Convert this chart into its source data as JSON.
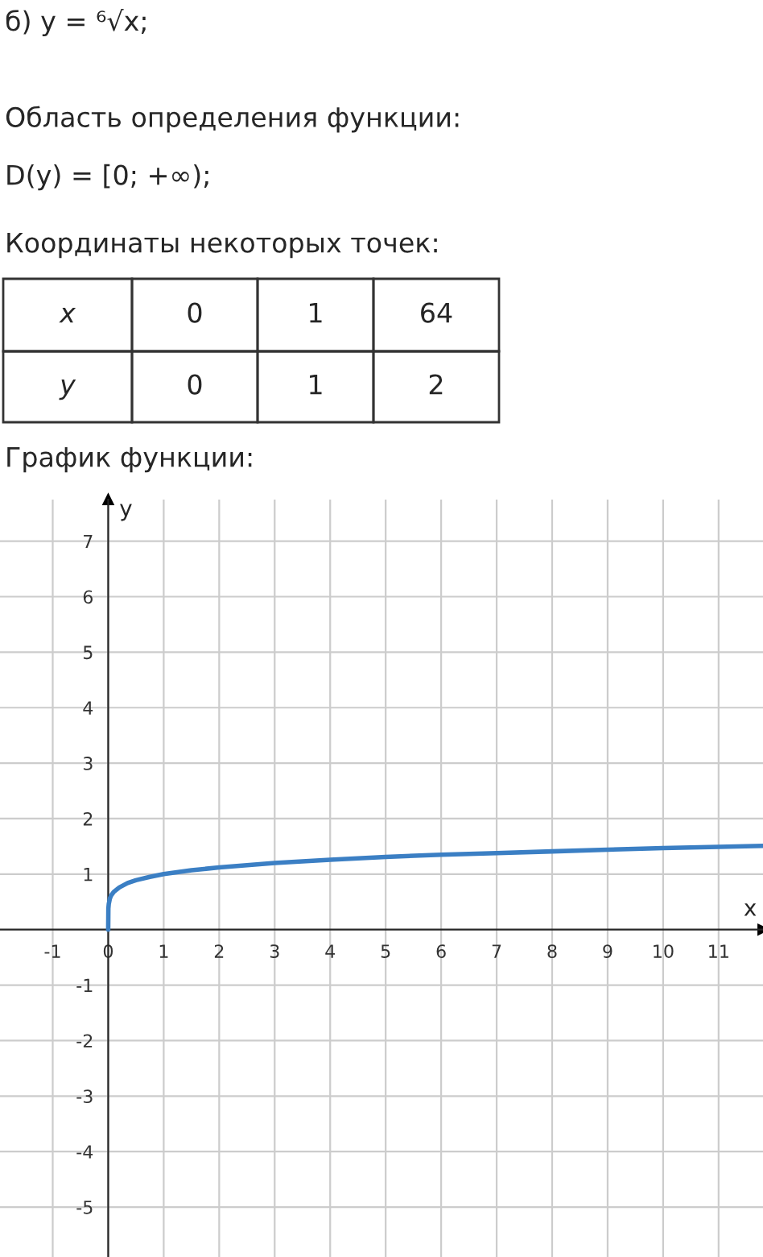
{
  "chart_data": {
    "type": "line",
    "title": "б) y = ⁶√x;",
    "xlabel": "x",
    "ylabel": "y",
    "annotations": [
      "Область определения функции:",
      "D(y) = [0; +∞);",
      "Координаты некоторых точек:",
      "x",
      "0",
      "1",
      "64",
      "y",
      "0",
      "1",
      "2",
      "График функции:"
    ],
    "series": [
      {
        "color": "#3b7fc4",
        "x": [
          0,
          0.003,
          0.01,
          0.03,
          0.05,
          0.1,
          0.2,
          0.35,
          0.5,
          0.75,
          1,
          1.5,
          2,
          3,
          4,
          5,
          6,
          7,
          8,
          9,
          10,
          11,
          11.8
        ],
        "values": [
          0,
          0.38,
          0.46,
          0.56,
          0.61,
          0.68,
          0.76,
          0.84,
          0.89,
          0.95,
          1,
          1.07,
          1.12,
          1.2,
          1.26,
          1.31,
          1.35,
          1.38,
          1.41,
          1.44,
          1.47,
          1.49,
          1.51
        ]
      }
    ],
    "xlim": [
      -1.95,
      11.8
    ],
    "ylim": [
      -5.9,
      7.75
    ],
    "xticks": [
      -1,
      0,
      1,
      2,
      3,
      4,
      5,
      6,
      7,
      8,
      9,
      10,
      11
    ],
    "yticks": [
      -5,
      -4,
      -3,
      -2,
      -1,
      1,
      2,
      3,
      4,
      5,
      6,
      7
    ],
    "grid": true,
    "marker": "none",
    "line_style": "solid"
  }
}
